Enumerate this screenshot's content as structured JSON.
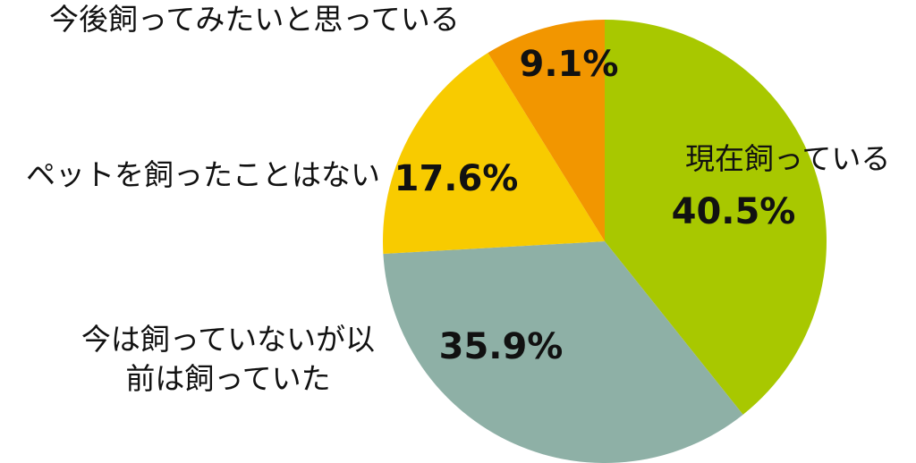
{
  "chart_data": {
    "type": "pie",
    "categories": [
      "現在飼っている",
      "今は飼っていないが以前は飼っていた",
      "ペットを飼ったことはない",
      "今後飼ってみたいと思っている"
    ],
    "values": [
      40.5,
      35.9,
      17.6,
      9.1
    ],
    "value_labels": [
      "40.5%",
      "35.9%",
      "17.6%",
      "9.1%"
    ],
    "colors": [
      "#a8c800",
      "#8eb0a6",
      "#f8cb00",
      "#f29600"
    ]
  }
}
